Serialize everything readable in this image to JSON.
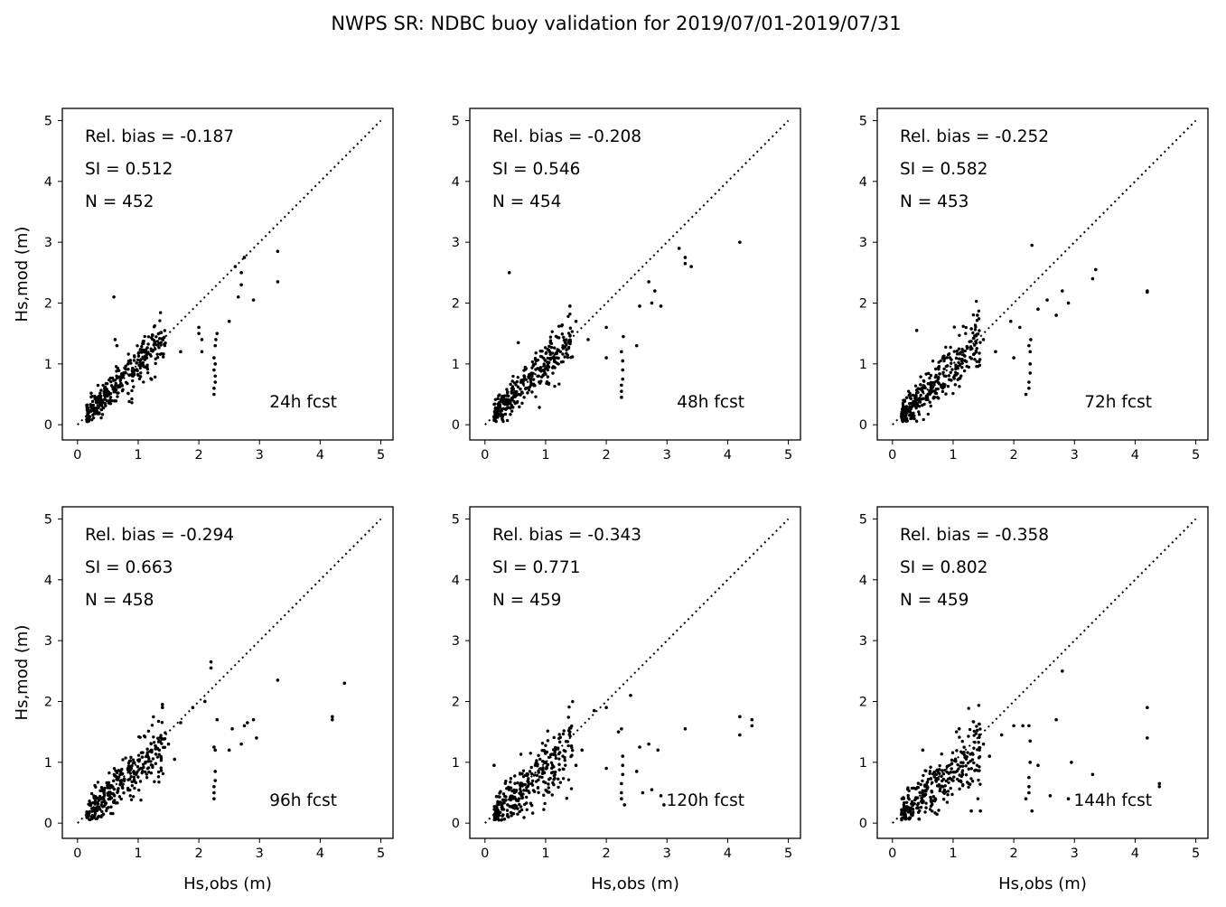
{
  "figure": {
    "title": "NWPS SR: NDBC buoy validation for 2019/07/01-2019/07/31",
    "xlabel": "Hs,obs (m)",
    "ylabel": "Hs,mod (m)"
  },
  "chart_data": [
    {
      "type": "scatter",
      "fcst": "24h fcst",
      "stats": [
        "Rel. bias = -0.187",
        "SI =  0.512",
        "N = 452"
      ],
      "xlim": [
        -0.25,
        5.2
      ],
      "ylim": [
        -0.25,
        5.2
      ],
      "xticks": [
        0,
        1,
        2,
        3,
        4,
        5
      ],
      "yticks": [
        0,
        1,
        2,
        3,
        4,
        5
      ],
      "cloud_count": 330,
      "spread": 0.18,
      "bias": 0.0,
      "x": [
        0.6,
        0.62,
        0.65,
        1.7,
        2.0,
        2.0,
        2.05,
        2.05,
        2.25,
        2.25,
        2.27,
        2.27,
        2.25,
        2.27,
        2.25,
        2.27,
        2.28,
        2.3,
        2.5,
        2.6,
        2.65,
        2.7,
        2.75,
        2.7,
        2.9,
        3.3,
        3.3
      ],
      "y": [
        2.1,
        1.4,
        1.3,
        1.2,
        1.5,
        1.6,
        1.4,
        1.2,
        0.5,
        0.6,
        0.7,
        0.8,
        0.9,
        1.0,
        1.1,
        1.3,
        1.4,
        1.5,
        1.7,
        2.6,
        2.1,
        2.5,
        2.75,
        2.3,
        2.05,
        2.35,
        2.85
      ]
    },
    {
      "type": "scatter",
      "fcst": "48h fcst",
      "stats": [
        "Rel. bias = -0.208",
        "SI =  0.546",
        "N = 454"
      ],
      "xlim": [
        -0.25,
        5.2
      ],
      "ylim": [
        -0.25,
        5.2
      ],
      "xticks": [
        0,
        1,
        2,
        3,
        4,
        5
      ],
      "yticks": [
        0,
        1,
        2,
        3,
        4,
        5
      ],
      "cloud_count": 320,
      "spread": 0.2,
      "bias": -0.02,
      "x": [
        0.4,
        0.55,
        1.4,
        1.5,
        1.7,
        2.0,
        2.0,
        2.25,
        2.25,
        2.25,
        2.27,
        2.27,
        2.27,
        2.25,
        2.28,
        2.5,
        2.55,
        2.7,
        2.75,
        2.8,
        2.9,
        3.2,
        3.3,
        3.4,
        3.3,
        4.2
      ],
      "y": [
        2.5,
        1.35,
        1.95,
        1.7,
        1.4,
        1.6,
        1.1,
        0.45,
        0.55,
        0.65,
        0.75,
        0.9,
        1.05,
        1.2,
        1.45,
        1.3,
        1.95,
        2.35,
        2.0,
        2.2,
        1.95,
        2.9,
        2.65,
        2.6,
        2.75,
        3.0
      ]
    },
    {
      "type": "scatter",
      "fcst": "72h fcst",
      "stats": [
        "Rel. bias = -0.252",
        "SI =  0.582",
        "N = 453"
      ],
      "xlim": [
        -0.25,
        5.2
      ],
      "ylim": [
        -0.25,
        5.2
      ],
      "xticks": [
        0,
        1,
        2,
        3,
        4,
        5
      ],
      "yticks": [
        0,
        1,
        2,
        3,
        4,
        5
      ],
      "cloud_count": 320,
      "spread": 0.22,
      "bias": -0.04,
      "x": [
        0.4,
        1.4,
        1.5,
        1.7,
        1.95,
        2.0,
        2.1,
        2.2,
        2.25,
        2.25,
        2.27,
        2.27,
        2.27,
        2.25,
        2.28,
        2.3,
        2.4,
        2.55,
        2.7,
        2.8,
        2.9,
        3.3,
        3.35,
        4.2,
        4.2
      ],
      "y": [
        1.55,
        1.8,
        1.4,
        1.2,
        1.7,
        1.1,
        1.6,
        0.5,
        0.6,
        0.7,
        0.85,
        1.0,
        1.2,
        1.3,
        1.4,
        2.95,
        1.9,
        2.05,
        1.8,
        2.2,
        2.0,
        2.4,
        2.55,
        2.2,
        2.18
      ]
    },
    {
      "type": "scatter",
      "fcst": "96h fcst",
      "stats": [
        "Rel. bias = -0.294",
        "SI =  0.663",
        "N = 458"
      ],
      "xlim": [
        -0.25,
        5.2
      ],
      "ylim": [
        -0.25,
        5.2
      ],
      "xticks": [
        0,
        1,
        2,
        3,
        4,
        5
      ],
      "yticks": [
        0,
        1,
        2,
        3,
        4,
        5
      ],
      "cloud_count": 310,
      "spread": 0.23,
      "bias": -0.06,
      "x": [
        1.4,
        1.4,
        1.5,
        1.6,
        1.7,
        1.9,
        2.1,
        2.2,
        2.2,
        2.25,
        2.25,
        2.25,
        2.27,
        2.27,
        2.27,
        2.25,
        2.3,
        2.5,
        2.55,
        2.7,
        2.75,
        2.8,
        2.9,
        2.95,
        3.3,
        4.2,
        4.2,
        4.4
      ],
      "y": [
        1.9,
        1.95,
        1.3,
        1.05,
        1.65,
        1.9,
        2.0,
        2.65,
        2.55,
        0.4,
        0.5,
        0.6,
        0.7,
        0.85,
        1.2,
        1.25,
        1.7,
        1.2,
        1.55,
        1.3,
        1.6,
        1.65,
        1.7,
        1.4,
        2.35,
        1.75,
        1.7,
        2.3
      ]
    },
    {
      "type": "scatter",
      "fcst": "120h fcst",
      "stats": [
        "Rel. bias = -0.343",
        "SI =  0.771",
        "N = 459"
      ],
      "xlim": [
        -0.25,
        5.2
      ],
      "ylim": [
        -0.25,
        5.2
      ],
      "xticks": [
        0,
        1,
        2,
        3,
        4,
        5
      ],
      "yticks": [
        0,
        1,
        2,
        3,
        4,
        5
      ],
      "cloud_count": 300,
      "spread": 0.26,
      "bias": -0.1,
      "x": [
        0.15,
        1.4,
        1.5,
        1.6,
        1.8,
        2.0,
        2.0,
        2.2,
        2.25,
        2.25,
        2.25,
        2.27,
        2.27,
        2.27,
        2.25,
        2.3,
        2.4,
        2.5,
        2.55,
        2.6,
        2.7,
        2.75,
        2.85,
        2.9,
        2.95,
        3.3,
        4.2,
        4.2,
        4.4,
        4.4
      ],
      "y": [
        0.95,
        1.5,
        0.95,
        1.2,
        1.85,
        1.9,
        0.9,
        1.5,
        0.4,
        0.5,
        0.65,
        0.8,
        0.95,
        1.1,
        1.55,
        0.3,
        2.1,
        0.85,
        1.25,
        0.5,
        1.3,
        0.55,
        1.2,
        0.45,
        0.3,
        1.55,
        1.45,
        1.75,
        1.7,
        1.6
      ]
    },
    {
      "type": "scatter",
      "fcst": "144h fcst",
      "stats": [
        "Rel. bias = -0.358",
        "SI =  0.802",
        "N = 459"
      ],
      "xlim": [
        -0.25,
        5.2
      ],
      "ylim": [
        -0.25,
        5.2
      ],
      "xticks": [
        0,
        1,
        2,
        3,
        4,
        5
      ],
      "yticks": [
        0,
        1,
        2,
        3,
        4,
        5
      ],
      "cloud_count": 300,
      "spread": 0.26,
      "bias": -0.12,
      "x": [
        0.5,
        1.1,
        1.3,
        1.45,
        1.5,
        1.6,
        1.8,
        2.0,
        2.15,
        2.2,
        2.25,
        2.25,
        2.25,
        2.27,
        2.27,
        2.25,
        2.3,
        2.4,
        2.6,
        2.7,
        2.8,
        2.9,
        2.95,
        3.3,
        4.2,
        4.2,
        4.4,
        4.4
      ],
      "y": [
        1.2,
        1.55,
        0.2,
        0.2,
        1.3,
        1.1,
        1.45,
        1.6,
        1.6,
        0.4,
        0.5,
        0.6,
        0.75,
        1.0,
        1.35,
        1.6,
        0.2,
        0.95,
        0.45,
        1.7,
        2.5,
        0.4,
        1.0,
        0.8,
        1.4,
        1.9,
        0.6,
        0.65
      ]
    }
  ]
}
